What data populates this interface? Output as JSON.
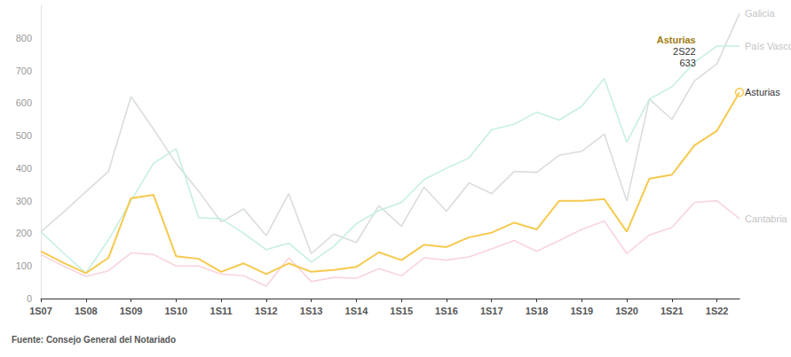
{
  "chart_data": {
    "type": "line",
    "source": "Fuente: Consejo General del Notariado",
    "categories": [
      "1S07",
      null,
      "1S08",
      null,
      "1S09",
      null,
      "1S10",
      null,
      "1S11",
      null,
      "1S12",
      null,
      "1S13",
      null,
      "1S14",
      null,
      "1S15",
      null,
      "1S16",
      null,
      "1S17",
      null,
      "1S18",
      null,
      "1S19",
      null,
      "1S20",
      null,
      "1S21",
      null,
      "1S22",
      null
    ],
    "series": [
      {
        "name": "Galicia",
        "color": "#d9dddd",
        "values": [
          205,
          265,
          328,
          390,
          620,
          520,
          415,
          330,
          235,
          275,
          193,
          322,
          138,
          198,
          172,
          285,
          222,
          342,
          268,
          355,
          322,
          390,
          387,
          440,
          452,
          505,
          300,
          612,
          550,
          668,
          720,
          875
        ]
      },
      {
        "name": "País Vasco",
        "color": "#c6efe2",
        "values": [
          205,
          140,
          78,
          180,
          300,
          415,
          460,
          248,
          245,
          200,
          150,
          170,
          112,
          160,
          230,
          270,
          295,
          365,
          400,
          432,
          518,
          535,
          572,
          548,
          590,
          675,
          480,
          612,
          650,
          725,
          775,
          775
        ]
      },
      {
        "name": "Asturias",
        "color": "#f6c94e",
        "values": [
          145,
          110,
          78,
          125,
          308,
          318,
          130,
          122,
          82,
          108,
          75,
          108,
          82,
          88,
          97,
          142,
          118,
          165,
          158,
          188,
          202,
          233,
          212,
          300,
          300,
          305,
          205,
          368,
          380,
          470,
          515,
          633
        ]
      },
      {
        "name": "Cantabria",
        "color": "#f9d4dc",
        "values": [
          135,
          100,
          68,
          85,
          140,
          135,
          100,
          100,
          75,
          70,
          38,
          125,
          52,
          65,
          62,
          92,
          70,
          125,
          118,
          128,
          152,
          178,
          145,
          178,
          212,
          238,
          138,
          195,
          218,
          295,
          300,
          245
        ]
      }
    ],
    "annotations": [
      {
        "series": "Asturias",
        "label": "2S22",
        "value": 633
      }
    ],
    "ylim": [
      0,
      900
    ],
    "yticks": [
      0,
      100,
      200,
      300,
      400,
      500,
      600,
      700,
      800
    ],
    "grid": false,
    "marker": "none"
  }
}
